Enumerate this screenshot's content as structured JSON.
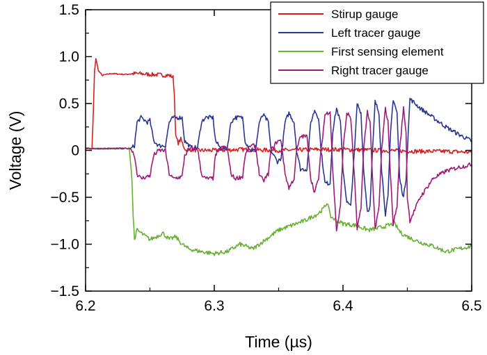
{
  "chart_data": {
    "type": "line",
    "title": "",
    "xlabel": "Time (µs)",
    "ylabel": "Voltage (V)",
    "xlim": [
      6.2,
      6.5
    ],
    "ylim": [
      -1.5,
      1.5
    ],
    "x_ticks": [
      6.2,
      6.3,
      6.4,
      6.5
    ],
    "x_tick_labels": [
      "6.2",
      "6.3",
      "6.4",
      "6.5"
    ],
    "y_ticks": [
      1.5,
      1.0,
      0.5,
      0,
      -0.5,
      -1.0,
      -1.5
    ],
    "y_tick_labels": [
      "1.5",
      "1.0",
      "0.5",
      "0",
      "−0.5",
      "−1.0",
      "−1.5"
    ],
    "grid": false,
    "legend_position": "top-right",
    "series": [
      {
        "name": "Stirup gauge",
        "color": "#d42020",
        "points": [
          [
            6.2,
            0.02
          ],
          [
            6.205,
            0.02
          ],
          [
            6.206,
            0.4
          ],
          [
            6.207,
            0.85
          ],
          [
            6.208,
            0.98
          ],
          [
            6.21,
            0.85
          ],
          [
            6.213,
            0.8
          ],
          [
            6.22,
            0.82
          ],
          [
            6.23,
            0.81
          ],
          [
            6.24,
            0.82
          ],
          [
            6.25,
            0.81
          ],
          [
            6.265,
            0.8
          ],
          [
            6.268,
            0.78
          ],
          [
            6.269,
            0.6
          ],
          [
            6.27,
            0.15
          ],
          [
            6.272,
            0.08
          ],
          [
            6.274,
            0.12
          ],
          [
            6.276,
            0.05
          ],
          [
            6.278,
            0.0
          ],
          [
            6.28,
            0.01
          ],
          [
            6.29,
            0.0
          ],
          [
            6.3,
            0.0
          ],
          [
            6.32,
            0.01
          ],
          [
            6.35,
            0.0
          ],
          [
            6.38,
            0.01
          ],
          [
            6.4,
            0.01
          ],
          [
            6.43,
            0.0
          ],
          [
            6.46,
            -0.01
          ],
          [
            6.48,
            -0.01
          ],
          [
            6.5,
            -0.02
          ]
        ]
      },
      {
        "name": "Left  tracer gauge",
        "color": "#283593",
        "points": [
          [
            6.2,
            0.02
          ],
          [
            6.235,
            0.02
          ],
          [
            6.238,
            0.05
          ],
          [
            6.24,
            0.3
          ],
          [
            6.243,
            0.35
          ],
          [
            6.248,
            0.3
          ],
          [
            6.25,
            0.32
          ],
          [
            6.253,
            0.1
          ],
          [
            6.257,
            0.05
          ],
          [
            6.262,
            0.05
          ],
          [
            6.265,
            0.3
          ],
          [
            6.268,
            0.35
          ],
          [
            6.275,
            0.35
          ],
          [
            6.277,
            0.1
          ],
          [
            6.282,
            0.03
          ],
          [
            6.287,
            0.03
          ],
          [
            6.29,
            0.3
          ],
          [
            6.293,
            0.35
          ],
          [
            6.299,
            0.35
          ],
          [
            6.301,
            0.1
          ],
          [
            6.305,
            0.02
          ],
          [
            6.31,
            0.02
          ],
          [
            6.313,
            0.3
          ],
          [
            6.316,
            0.35
          ],
          [
            6.322,
            0.35
          ],
          [
            6.324,
            0.1
          ],
          [
            6.328,
            0.0
          ],
          [
            6.332,
            0.0
          ],
          [
            6.335,
            0.3
          ],
          [
            6.338,
            0.38
          ],
          [
            6.342,
            0.3
          ],
          [
            6.344,
            0.0
          ],
          [
            6.349,
            -0.12
          ],
          [
            6.352,
            -0.08
          ],
          [
            6.355,
            0.3
          ],
          [
            6.358,
            0.4
          ],
          [
            6.362,
            0.3
          ],
          [
            6.364,
            0.0
          ],
          [
            6.367,
            -0.2
          ],
          [
            6.372,
            -0.2
          ],
          [
            6.375,
            0.3
          ],
          [
            6.378,
            0.43
          ],
          [
            6.381,
            0.35
          ],
          [
            6.383,
            0.0
          ],
          [
            6.386,
            -0.35
          ],
          [
            6.39,
            -0.35
          ],
          [
            6.392,
            0.2
          ],
          [
            6.395,
            0.45
          ],
          [
            6.398,
            0.3
          ],
          [
            6.4,
            -0.2
          ],
          [
            6.403,
            -0.55
          ],
          [
            6.406,
            -0.6
          ],
          [
            6.409,
            0.0
          ],
          [
            6.411,
            0.5
          ],
          [
            6.414,
            0.4
          ],
          [
            6.416,
            -0.2
          ],
          [
            6.419,
            -0.65
          ],
          [
            6.421,
            -0.6
          ],
          [
            6.423,
            0.0
          ],
          [
            6.425,
            0.52
          ],
          [
            6.428,
            0.4
          ],
          [
            6.43,
            -0.2
          ],
          [
            6.433,
            -0.68
          ],
          [
            6.435,
            -0.5
          ],
          [
            6.437,
            0.2
          ],
          [
            6.439,
            0.55
          ],
          [
            6.442,
            0.4
          ],
          [
            6.444,
            -0.3
          ],
          [
            6.447,
            -0.5
          ],
          [
            6.449,
            -0.3
          ],
          [
            6.45,
            0.0
          ],
          [
            6.452,
            0.55
          ],
          [
            6.46,
            0.45
          ],
          [
            6.47,
            0.35
          ],
          [
            6.48,
            0.25
          ],
          [
            6.49,
            0.17
          ],
          [
            6.5,
            0.1
          ]
        ]
      },
      {
        "name": "First sensing element",
        "color": "#66b032",
        "points": [
          [
            6.2,
            0.02
          ],
          [
            6.234,
            0.02
          ],
          [
            6.236,
            -0.3
          ],
          [
            6.237,
            -0.7
          ],
          [
            6.238,
            -0.95
          ],
          [
            6.24,
            -0.85
          ],
          [
            6.245,
            -0.9
          ],
          [
            6.25,
            -0.95
          ],
          [
            6.255,
            -0.92
          ],
          [
            6.26,
            -0.88
          ],
          [
            6.265,
            -0.95
          ],
          [
            6.27,
            -0.92
          ],
          [
            6.275,
            -1.0
          ],
          [
            6.28,
            -1.05
          ],
          [
            6.29,
            -1.08
          ],
          [
            6.3,
            -1.1
          ],
          [
            6.31,
            -1.08
          ],
          [
            6.32,
            -1.0
          ],
          [
            6.33,
            -1.05
          ],
          [
            6.34,
            -0.95
          ],
          [
            6.35,
            -0.85
          ],
          [
            6.36,
            -0.8
          ],
          [
            6.37,
            -0.75
          ],
          [
            6.38,
            -0.68
          ],
          [
            6.385,
            -0.62
          ],
          [
            6.388,
            -0.55
          ],
          [
            6.39,
            -0.7
          ],
          [
            6.395,
            -0.75
          ],
          [
            6.4,
            -0.78
          ],
          [
            6.41,
            -0.8
          ],
          [
            6.42,
            -0.85
          ],
          [
            6.43,
            -0.82
          ],
          [
            6.44,
            -0.78
          ],
          [
            6.445,
            -0.88
          ],
          [
            6.45,
            -0.92
          ],
          [
            6.46,
            -0.98
          ],
          [
            6.47,
            -1.02
          ],
          [
            6.48,
            -1.08
          ],
          [
            6.49,
            -1.05
          ],
          [
            6.5,
            -1.02
          ]
        ]
      },
      {
        "name": "Right tracer gauge",
        "color": "#a0197a",
        "points": [
          [
            6.2,
            0.02
          ],
          [
            6.235,
            0.02
          ],
          [
            6.238,
            -0.05
          ],
          [
            6.24,
            -0.25
          ],
          [
            6.243,
            -0.3
          ],
          [
            6.25,
            -0.27
          ],
          [
            6.253,
            -0.05
          ],
          [
            6.257,
            0.0
          ],
          [
            6.262,
            0.0
          ],
          [
            6.265,
            -0.25
          ],
          [
            6.268,
            -0.3
          ],
          [
            6.275,
            -0.28
          ],
          [
            6.277,
            -0.05
          ],
          [
            6.282,
            0.02
          ],
          [
            6.287,
            0.02
          ],
          [
            6.29,
            -0.25
          ],
          [
            6.293,
            -0.3
          ],
          [
            6.299,
            -0.3
          ],
          [
            6.301,
            -0.05
          ],
          [
            6.305,
            0.03
          ],
          [
            6.31,
            0.03
          ],
          [
            6.313,
            -0.25
          ],
          [
            6.316,
            -0.3
          ],
          [
            6.322,
            -0.28
          ],
          [
            6.324,
            -0.05
          ],
          [
            6.328,
            0.05
          ],
          [
            6.332,
            0.05
          ],
          [
            6.335,
            -0.25
          ],
          [
            6.338,
            -0.33
          ],
          [
            6.342,
            -0.25
          ],
          [
            6.344,
            0.0
          ],
          [
            6.349,
            0.1
          ],
          [
            6.352,
            0.1
          ],
          [
            6.355,
            -0.25
          ],
          [
            6.358,
            -0.4
          ],
          [
            6.362,
            -0.3
          ],
          [
            6.364,
            0.0
          ],
          [
            6.367,
            0.15
          ],
          [
            6.372,
            0.15
          ],
          [
            6.375,
            -0.3
          ],
          [
            6.378,
            -0.45
          ],
          [
            6.381,
            -0.3
          ],
          [
            6.383,
            0.0
          ],
          [
            6.386,
            0.38
          ],
          [
            6.39,
            0.42
          ],
          [
            6.392,
            -0.2
          ],
          [
            6.395,
            -0.85
          ],
          [
            6.398,
            -0.6
          ],
          [
            6.4,
            0.0
          ],
          [
            6.403,
            0.4
          ],
          [
            6.406,
            0.35
          ],
          [
            6.409,
            -0.3
          ],
          [
            6.411,
            -0.85
          ],
          [
            6.414,
            -0.6
          ],
          [
            6.416,
            0.0
          ],
          [
            6.419,
            0.42
          ],
          [
            6.421,
            0.3
          ],
          [
            6.423,
            -0.3
          ],
          [
            6.425,
            -0.85
          ],
          [
            6.428,
            -0.6
          ],
          [
            6.43,
            0.0
          ],
          [
            6.433,
            0.45
          ],
          [
            6.435,
            0.3
          ],
          [
            6.437,
            -0.3
          ],
          [
            6.439,
            -0.78
          ],
          [
            6.442,
            -0.6
          ],
          [
            6.444,
            0.0
          ],
          [
            6.447,
            0.45
          ],
          [
            6.449,
            0.2
          ],
          [
            6.45,
            -0.5
          ],
          [
            6.452,
            -0.75
          ],
          [
            6.46,
            -0.5
          ],
          [
            6.47,
            -0.3
          ],
          [
            6.48,
            -0.22
          ],
          [
            6.49,
            -0.18
          ],
          [
            6.5,
            -0.15
          ]
        ]
      }
    ]
  }
}
